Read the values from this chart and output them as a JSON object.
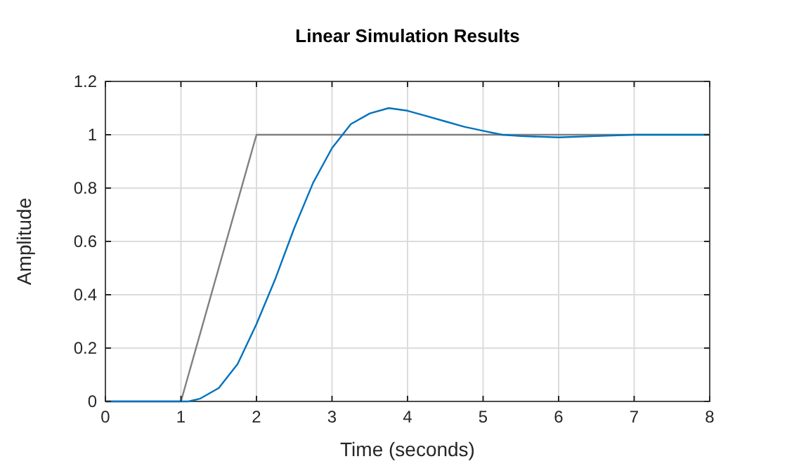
{
  "chart_data": {
    "type": "line",
    "title": "Linear Simulation Results",
    "xlabel": "Time (seconds)",
    "ylabel": "Amplitude",
    "xlim": [
      0,
      8
    ],
    "ylim": [
      0,
      1.2
    ],
    "xticks": [
      0,
      1,
      2,
      3,
      4,
      5,
      6,
      7,
      8
    ],
    "yticks": [
      0,
      0.2,
      0.4,
      0.6,
      0.8,
      1,
      1.2
    ],
    "grid": true,
    "series": [
      {
        "color": "#808080",
        "x": [
          0,
          1,
          2,
          8
        ],
        "values": [
          0,
          0,
          1,
          1
        ]
      },
      {
        "color": "#0072bd",
        "x": [
          0,
          1,
          1.1,
          1.25,
          1.5,
          1.75,
          2,
          2.25,
          2.5,
          2.75,
          3,
          3.25,
          3.5,
          3.75,
          4,
          4.25,
          4.5,
          4.75,
          5,
          5.25,
          5.5,
          6,
          6.5,
          7,
          8
        ],
        "values": [
          0,
          0,
          0,
          0.01,
          0.05,
          0.14,
          0.29,
          0.46,
          0.65,
          0.82,
          0.95,
          1.04,
          1.08,
          1.1,
          1.09,
          1.07,
          1.05,
          1.03,
          1.015,
          1,
          0.995,
          0.99,
          0.995,
          1,
          1
        ]
      }
    ]
  }
}
